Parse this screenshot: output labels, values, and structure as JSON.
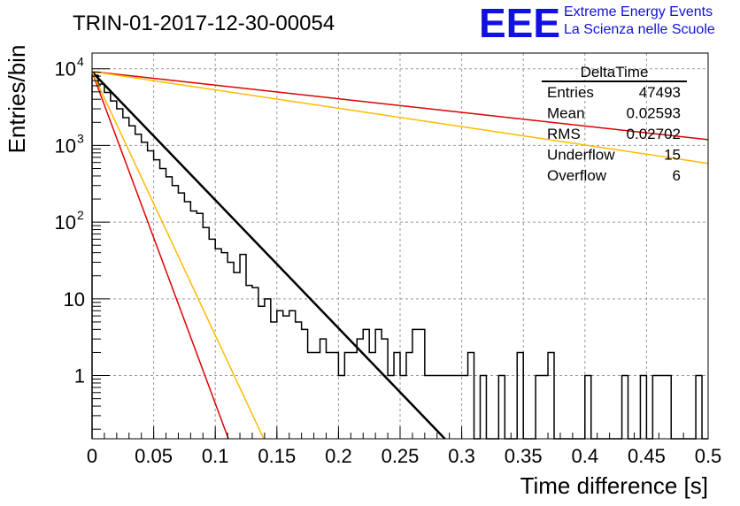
{
  "header": {
    "run_title": "TRIN-01-2017-12-30-00054",
    "logo_text": "EEE",
    "logo_line1": "Extreme Energy Events",
    "logo_line2": "La Scienza nelle Scuole",
    "logo_color": "#1010e0"
  },
  "stats_box": {
    "title": "DeltaTime",
    "rows": [
      {
        "label": "Entries",
        "value": "47493"
      },
      {
        "label": "Mean",
        "value": "0.02593"
      },
      {
        "label": "RMS",
        "value": "0.02702"
      },
      {
        "label": "Underflow",
        "value": "15"
      },
      {
        "label": "Overflow",
        "value": "6"
      }
    ]
  },
  "chart_data": {
    "type": "line",
    "xlabel": "Time difference [s]",
    "ylabel": "Entries/bin",
    "xlim": [
      0,
      0.5
    ],
    "ylim": [
      0.15,
      16000
    ],
    "y_scale": "log",
    "grid": true,
    "x_ticks": [
      {
        "value": 0,
        "label": "0"
      },
      {
        "value": 0.05,
        "label": "0.05"
      },
      {
        "value": 0.1,
        "label": "0.1"
      },
      {
        "value": 0.15,
        "label": "0.15"
      },
      {
        "value": 0.2,
        "label": "0.2"
      },
      {
        "value": 0.25,
        "label": "0.25"
      },
      {
        "value": 0.3,
        "label": "0.3"
      },
      {
        "value": 0.35,
        "label": "0.35"
      },
      {
        "value": 0.4,
        "label": "0.4"
      },
      {
        "value": 0.45,
        "label": "0.45"
      },
      {
        "value": 0.5,
        "label": "0.5"
      }
    ],
    "y_ticks": [
      {
        "value": 1,
        "label": "1"
      },
      {
        "value": 10,
        "label": "10"
      },
      {
        "value": 100,
        "label": "10",
        "exp": "2"
      },
      {
        "value": 1000,
        "label": "10",
        "exp": "3"
      },
      {
        "value": 10000,
        "label": "10",
        "exp": "4"
      }
    ],
    "histogram": {
      "name": "DeltaTime",
      "color": "#000000",
      "bin_width": 0.005,
      "bin_start": 0,
      "counts": [
        8200,
        6300,
        4900,
        3800,
        3000,
        2300,
        1800,
        1400,
        1100,
        850,
        650,
        500,
        390,
        300,
        240,
        185,
        140,
        130,
        85,
        60,
        45,
        40,
        30,
        22,
        38,
        15,
        14,
        8,
        10,
        5,
        7,
        6,
        7,
        5,
        4,
        2,
        2,
        3,
        2,
        2,
        1,
        2,
        2,
        3,
        4,
        2,
        4,
        3,
        1,
        2,
        1,
        2,
        4,
        4,
        1,
        1,
        1,
        1,
        1,
        1,
        1,
        2,
        0,
        1,
        0,
        0,
        1,
        0,
        0,
        2,
        0,
        0,
        1,
        1,
        2,
        0,
        0,
        0,
        0,
        0,
        1,
        0,
        0,
        0,
        0,
        0,
        1,
        0,
        0,
        1,
        0,
        1,
        1,
        1,
        0,
        0,
        0,
        0,
        1,
        0
      ]
    },
    "series": [
      {
        "color": "#000000",
        "width": 2.5,
        "a": 9100,
        "tau": 0.026
      },
      {
        "color": "#e00000",
        "width": 1.5,
        "a": 9100,
        "tau": 0.01005
      },
      {
        "color": "#ffbb00",
        "width": 1.5,
        "a": 9100,
        "tau": 0.01265
      },
      {
        "color": "#e00000",
        "width": 1.5,
        "a": 9200,
        "tau": 0.2445
      },
      {
        "color": "#ffbb00",
        "width": 1.5,
        "a": 9200,
        "tau": 0.1813
      }
    ]
  }
}
